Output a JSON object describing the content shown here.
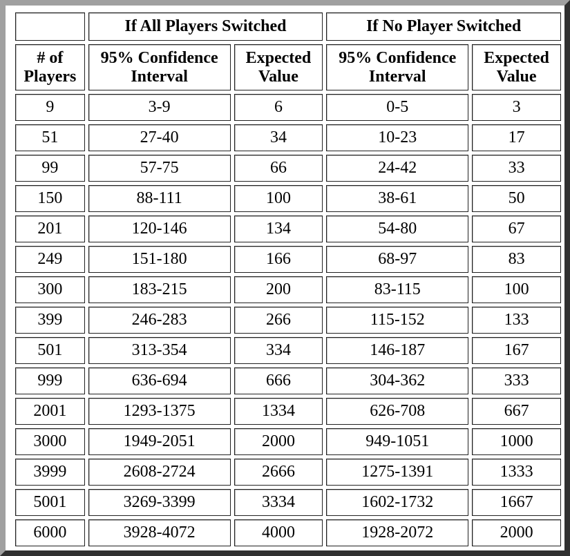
{
  "header": {
    "group_all": "If All Players Switched",
    "group_none": "If No Player Switched",
    "col_players": "# of Players",
    "col_ci_all": "95% Confidence Interval",
    "col_ev_all": "Expected Value",
    "col_ci_none": "95% Confidence Interval",
    "col_ev_none": "Expected Value"
  },
  "rows": [
    {
      "players": "9",
      "ci_all": "3-9",
      "ev_all": "6",
      "ci_none": "0-5",
      "ev_none": "3"
    },
    {
      "players": "51",
      "ci_all": "27-40",
      "ev_all": "34",
      "ci_none": "10-23",
      "ev_none": "17"
    },
    {
      "players": "99",
      "ci_all": "57-75",
      "ev_all": "66",
      "ci_none": "24-42",
      "ev_none": "33"
    },
    {
      "players": "150",
      "ci_all": "88-111",
      "ev_all": "100",
      "ci_none": "38-61",
      "ev_none": "50"
    },
    {
      "players": "201",
      "ci_all": "120-146",
      "ev_all": "134",
      "ci_none": "54-80",
      "ev_none": "67"
    },
    {
      "players": "249",
      "ci_all": "151-180",
      "ev_all": "166",
      "ci_none": "68-97",
      "ev_none": "83"
    },
    {
      "players": "300",
      "ci_all": "183-215",
      "ev_all": "200",
      "ci_none": "83-115",
      "ev_none": "100"
    },
    {
      "players": "399",
      "ci_all": "246-283",
      "ev_all": "266",
      "ci_none": "115-152",
      "ev_none": "133"
    },
    {
      "players": "501",
      "ci_all": "313-354",
      "ev_all": "334",
      "ci_none": "146-187",
      "ev_none": "167"
    },
    {
      "players": "999",
      "ci_all": "636-694",
      "ev_all": "666",
      "ci_none": "304-362",
      "ev_none": "333"
    },
    {
      "players": "2001",
      "ci_all": "1293-1375",
      "ev_all": "1334",
      "ci_none": "626-708",
      "ev_none": "667"
    },
    {
      "players": "3000",
      "ci_all": "1949-2051",
      "ev_all": "2000",
      "ci_none": "949-1051",
      "ev_none": "1000"
    },
    {
      "players": "3999",
      "ci_all": "2608-2724",
      "ev_all": "2666",
      "ci_none": "1275-1391",
      "ev_none": "1333"
    },
    {
      "players": "5001",
      "ci_all": "3269-3399",
      "ev_all": "3334",
      "ci_none": "1602-1732",
      "ev_none": "1667"
    },
    {
      "players": "6000",
      "ci_all": "3928-4072",
      "ev_all": "4000",
      "ci_none": "1928-2072",
      "ev_none": "2000"
    }
  ]
}
